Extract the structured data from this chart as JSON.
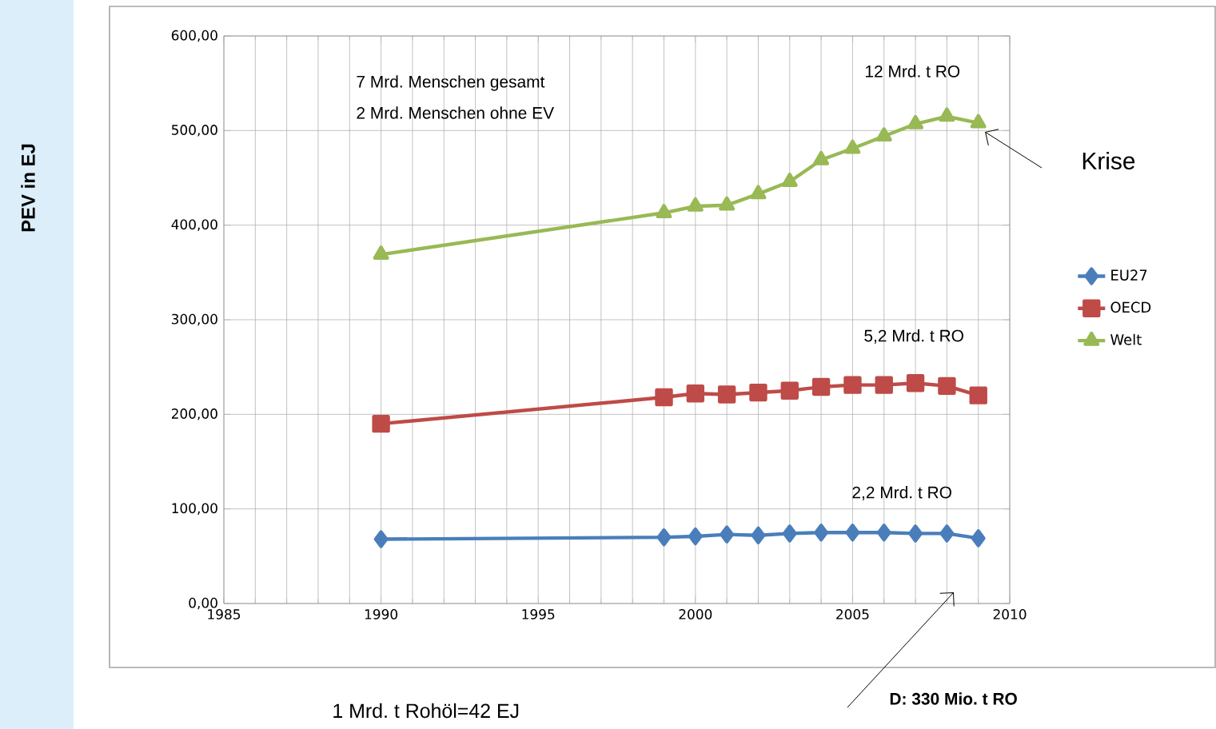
{
  "chart_data": {
    "type": "line",
    "x": [
      1990,
      1999,
      2000,
      2001,
      2002,
      2003,
      2004,
      2005,
      2006,
      2007,
      2008,
      2009
    ],
    "series": [
      {
        "name": "EU27",
        "color": "#4a7ebb",
        "marker": "diamond",
        "values": [
          68,
          70,
          71,
          73,
          72,
          74,
          75,
          75,
          75,
          74,
          74,
          69
        ]
      },
      {
        "name": "OECD",
        "color": "#be4b48",
        "marker": "square",
        "values": [
          190,
          218,
          222,
          221,
          223,
          225,
          229,
          231,
          231,
          233,
          230,
          220
        ]
      },
      {
        "name": "Welt",
        "color": "#98b954",
        "marker": "triangle",
        "values": [
          369,
          413,
          420,
          421,
          433,
          446,
          469,
          481,
          494,
          507,
          515,
          508
        ]
      }
    ],
    "xlim": [
      1985,
      2010
    ],
    "xticks": [
      1985,
      1990,
      1995,
      2000,
      2005,
      2010
    ],
    "ylim": [
      0,
      600
    ],
    "yticks": [
      {
        "value": 0,
        "label": "0,00"
      },
      {
        "value": 100,
        "label": "100,00"
      },
      {
        "value": 200,
        "label": "200,00"
      },
      {
        "value": 300,
        "label": "300,00"
      },
      {
        "value": 400,
        "label": "400,00"
      },
      {
        "value": 500,
        "label": "500,00"
      },
      {
        "value": 600,
        "label": "600,00"
      }
    ],
    "grid": true,
    "legend": "right",
    "line_style": "solid",
    "annotations": [
      "PEV in EJ",
      "7 Mrd. Menschen gesamt",
      "2 Mrd. Menschen ohne EV",
      "12 Mrd. t RO",
      "5,2 Mrd. t RO",
      "2,2 Mrd. t RO",
      "Krise",
      "D: 330 Mio. t RO",
      "1 Mrd. t Rohöl=42 EJ"
    ]
  }
}
